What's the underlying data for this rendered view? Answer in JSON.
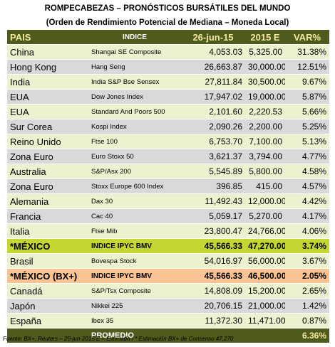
{
  "header": {
    "title": "ROMPECABEZAS  – PRONÓSTICOS BURSÁTILES DEL MUNDO",
    "subtitle": "(Orden de Rendimiento Potencial de Mediana  – Moneda Local)"
  },
  "table": {
    "columns": [
      "PAIS",
      "INDICE",
      "26-jun-15",
      "2015 E",
      "VAR%"
    ],
    "rows": [
      [
        "China",
        "Shangai SE Composite",
        "4,053.03",
        "5,325.00",
        "31.38%"
      ],
      [
        "Hong Kong",
        "Hang Seng",
        "26,663.87",
        "30,000.00",
        "12.51%"
      ],
      [
        "India",
        "India S&P Bse Sensex",
        "27,811.84",
        "30,500.00",
        "9.67%"
      ],
      [
        "EUA",
        "Dow Jones Index",
        "17,947.02",
        "19,000.00",
        "5.87%"
      ],
      [
        "EUA",
        "Standard And Poors 500",
        "2,101.60",
        "2,220.53",
        "5.66%"
      ],
      [
        "Sur Corea",
        "Kospi Index",
        "2,090.26",
        "2,200.00",
        "5.25%"
      ],
      [
        "Reino Unido",
        "Ftse 100",
        "6,753.70",
        "7,100.00",
        "5.13%"
      ],
      [
        "Zona Euro",
        "Euro Stoxx 50",
        "3,621.37",
        "3,794.00",
        "4.77%"
      ],
      [
        "Australia",
        "S&P/Asx 200",
        "5,545.89",
        "5,800.00",
        "4.58%"
      ],
      [
        "Zona Euro",
        "Stoxx Europe 600 Index",
        "396.85",
        "415.00",
        "4.57%"
      ],
      [
        "Alemania",
        "Dax 30",
        "11,492.43",
        "12,000.00",
        "4.42%"
      ],
      [
        "Francia",
        "Cac 40",
        "5,059.17",
        "5,270.00",
        "4.17%"
      ],
      [
        "Italia",
        "Ftse Mib",
        "23,800.47",
        "24,766.00",
        "4.06%"
      ],
      [
        "*MÉXICO",
        "INDICE IPYC BMV",
        "45,566.33",
        "47,270.00",
        "3.74%"
      ],
      [
        "Brasil",
        "Bovespa Stock",
        "54,016.97",
        "56,000.00",
        "3.67%"
      ],
      [
        "*MÉXICO (BX+)",
        "INDICE IPYC BMV",
        "45,566.33",
        "46,500.00",
        "2.05%"
      ],
      [
        "Canadá",
        "S&P/Tsx Composite",
        "14,808.09",
        "15,200.00",
        "2.65%"
      ],
      [
        "Japón",
        "Nikkei 225",
        "20,706.15",
        "21,000.00",
        "1.42%"
      ],
      [
        "España",
        "Ibex 35",
        "11,372.30",
        "11,471.00",
        "0.87%"
      ]
    ],
    "average": {
      "label": "PROMEDIO",
      "value": "6.36%"
    }
  },
  "footnote": "Fuente: BX+, Reuters – 29-jun-2015 E – Estimado / * Estimación BX+ de Consenso 47,270"
}
